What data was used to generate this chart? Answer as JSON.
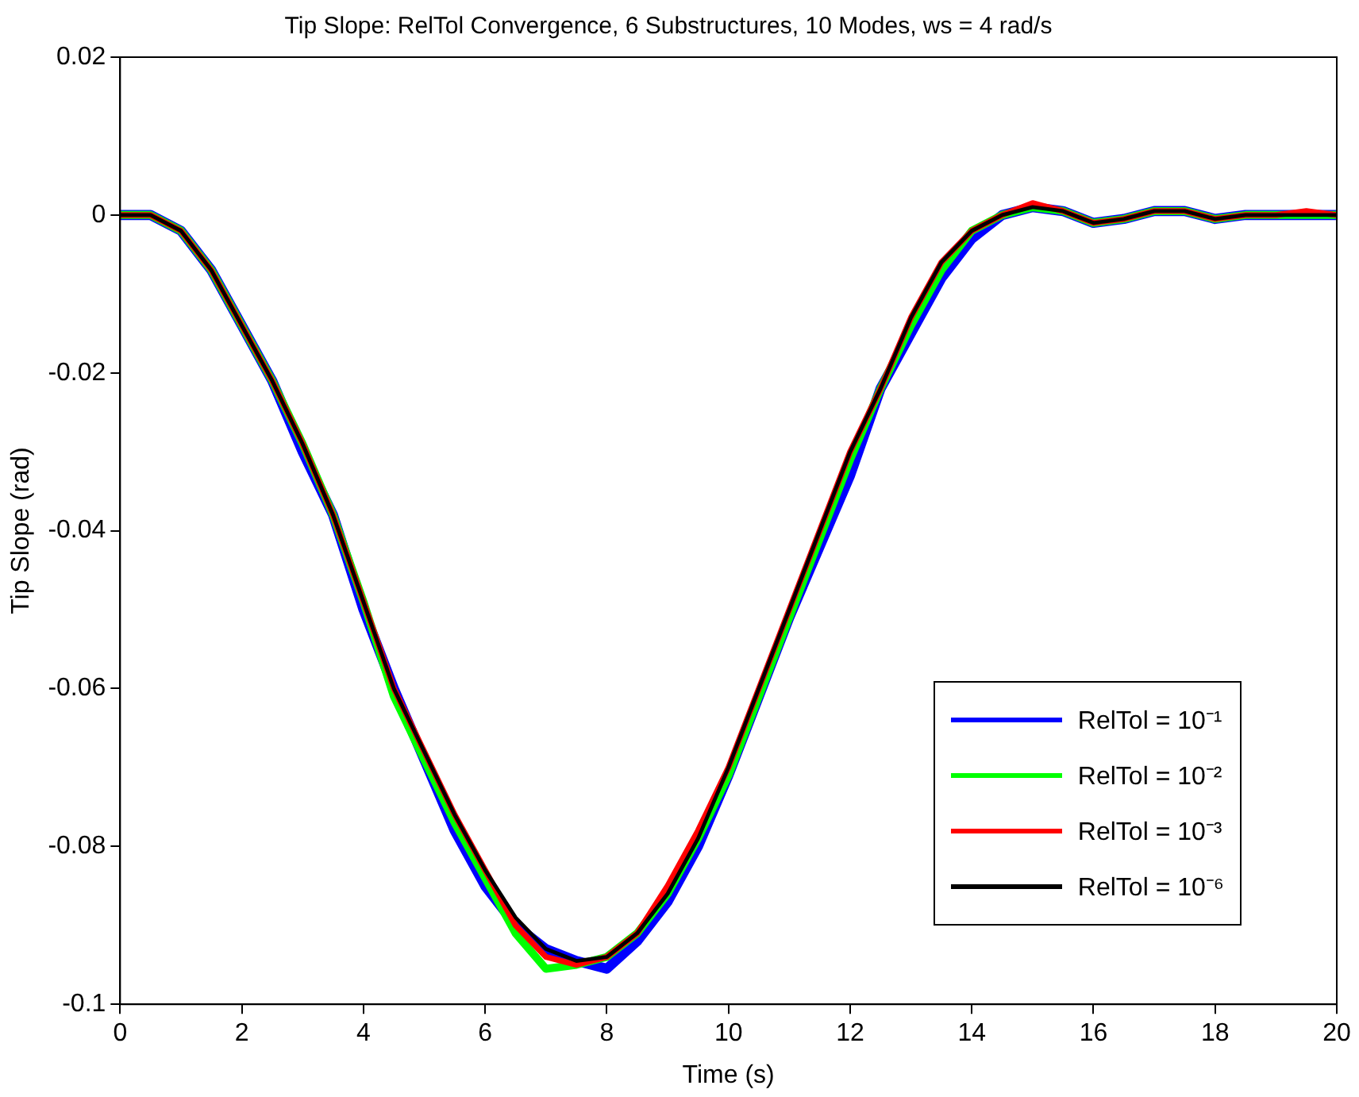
{
  "chart_data": {
    "type": "line",
    "title": "Tip Slope: RelTol Convergence, 6 Substructures, 10 Modes, ws = 4 rad/s",
    "xlabel": "Time (s)",
    "ylabel": "Tip Slope (rad)",
    "x": [
      0,
      0.5,
      1,
      1.5,
      2,
      2.5,
      3,
      3.5,
      4,
      4.5,
      5,
      5.5,
      6,
      6.5,
      7,
      7.5,
      8,
      8.5,
      9,
      9.5,
      10,
      10.5,
      11,
      11.5,
      12,
      12.5,
      13,
      13.5,
      14,
      14.5,
      15,
      15.5,
      16,
      16.5,
      17,
      17.5,
      18,
      18.5,
      19,
      19.5,
      20
    ],
    "series": [
      {
        "name": "RelTol = 10⁻¹",
        "color": "#0000ff",
        "values": [
          0,
          0,
          -0.002,
          -0.007,
          -0.014,
          -0.021,
          -0.03,
          -0.038,
          -0.05,
          -0.06,
          -0.069,
          -0.078,
          -0.085,
          -0.09,
          -0.093,
          -0.0945,
          -0.0955,
          -0.092,
          -0.087,
          -0.08,
          -0.071,
          -0.061,
          -0.051,
          -0.042,
          -0.033,
          -0.022,
          -0.015,
          -0.008,
          -0.003,
          0,
          0.001,
          0.0005,
          -0.001,
          -0.0005,
          0.0005,
          0.0005,
          -0.0005,
          0,
          0,
          0,
          0
        ]
      },
      {
        "name": "RelTol = 10⁻²",
        "color": "#00ff00",
        "values": [
          0,
          0,
          -0.002,
          -0.007,
          -0.014,
          -0.021,
          -0.029,
          -0.038,
          -0.049,
          -0.061,
          -0.069,
          -0.077,
          -0.084,
          -0.091,
          -0.0955,
          -0.095,
          -0.094,
          -0.091,
          -0.086,
          -0.079,
          -0.071,
          -0.061,
          -0.051,
          -0.041,
          -0.031,
          -0.022,
          -0.014,
          -0.007,
          -0.002,
          0,
          0.001,
          0.0005,
          -0.001,
          -0.0005,
          0.0005,
          0.0005,
          -0.0005,
          0,
          0,
          0,
          0
        ]
      },
      {
        "name": "RelTol = 10⁻³",
        "color": "#ff0000",
        "values": [
          0,
          0,
          -0.002,
          -0.007,
          -0.014,
          -0.021,
          -0.029,
          -0.038,
          -0.049,
          -0.06,
          -0.068,
          -0.076,
          -0.083,
          -0.09,
          -0.094,
          -0.095,
          -0.094,
          -0.091,
          -0.085,
          -0.078,
          -0.07,
          -0.06,
          -0.05,
          -0.04,
          -0.03,
          -0.022,
          -0.013,
          -0.006,
          -0.002,
          0,
          0.0015,
          0.0005,
          -0.001,
          -0.0005,
          0.0005,
          0.0005,
          -0.0005,
          0,
          0,
          0.0005,
          0
        ]
      },
      {
        "name": "RelTol = 10⁻⁶",
        "color": "#000000",
        "values": [
          0,
          0,
          -0.002,
          -0.007,
          -0.014,
          -0.021,
          -0.029,
          -0.038,
          -0.049,
          -0.06,
          -0.068,
          -0.076,
          -0.083,
          -0.089,
          -0.093,
          -0.0945,
          -0.094,
          -0.091,
          -0.086,
          -0.079,
          -0.07,
          -0.06,
          -0.05,
          -0.04,
          -0.03,
          -0.022,
          -0.013,
          -0.006,
          -0.002,
          0,
          0.001,
          0.0005,
          -0.001,
          -0.0005,
          0.0005,
          0.0005,
          -0.0005,
          0,
          0,
          0,
          0
        ]
      }
    ],
    "xlim": [
      0,
      20
    ],
    "xticks": [
      0,
      2,
      4,
      6,
      8,
      10,
      12,
      14,
      16,
      18,
      20
    ],
    "ylim": [
      -0.1,
      0.02
    ],
    "yticks": [
      -0.1,
      -0.08,
      -0.06,
      -0.04,
      -0.02,
      0,
      0.02
    ],
    "grid": false,
    "legend": "bottom right",
    "marker": "none",
    "line_style": "solid"
  }
}
